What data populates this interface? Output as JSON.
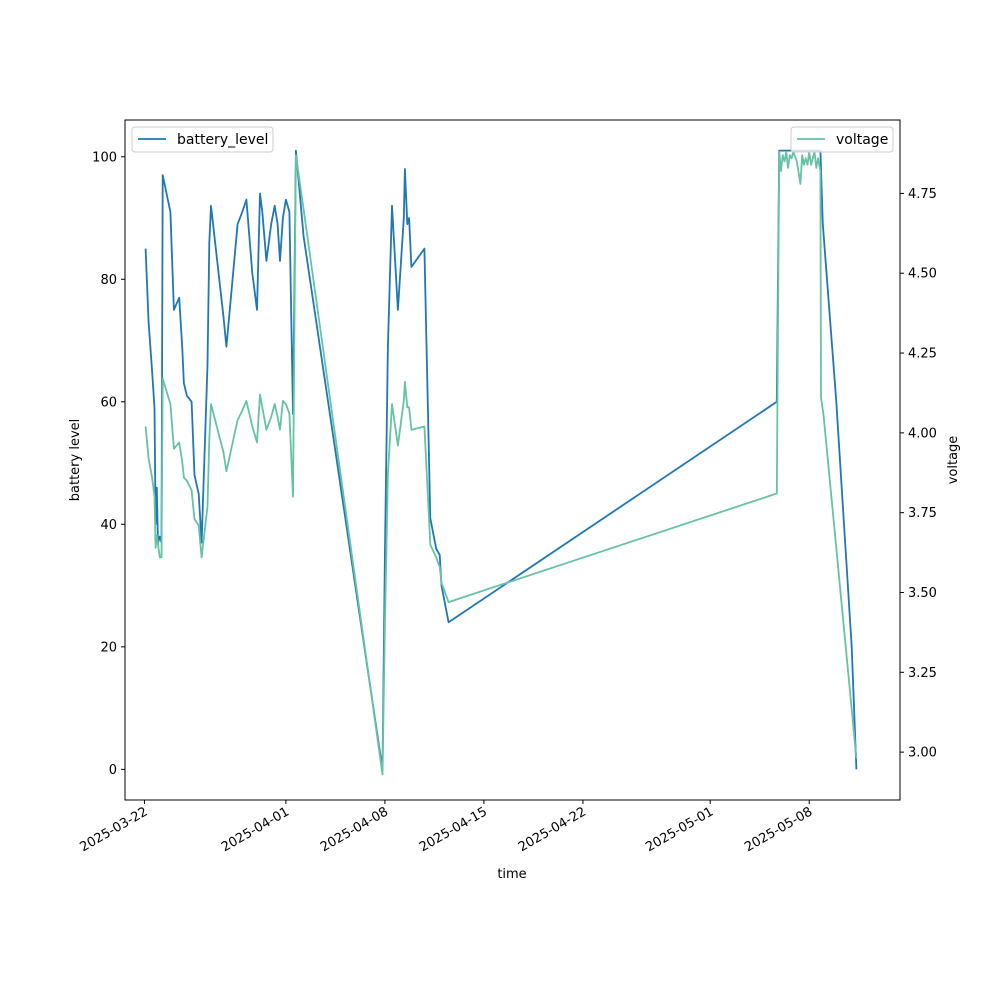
{
  "chart_data": {
    "type": "line",
    "xlabel": "time",
    "ylabel_left": "battery level",
    "ylabel_right": "voltage",
    "x_ticks": [
      "2025-03-22",
      "2025-04-01",
      "2025-04-08",
      "2025-04-15",
      "2025-04-22",
      "2025-05-01",
      "2025-05-08"
    ],
    "xlim": [
      "2025-03-20T15:00",
      "2025-05-14T10:00"
    ],
    "ylim_left": [
      -5,
      106
    ],
    "ylim_right": [
      2.85,
      4.98
    ],
    "y_ticks_left": [
      "0",
      "20",
      "40",
      "60",
      "80",
      "100"
    ],
    "y_ticks_right": [
      "3.00",
      "3.25",
      "3.50",
      "3.75",
      "4.00",
      "4.25",
      "4.50",
      "4.75"
    ],
    "legend_left": {
      "position": "upper-left"
    },
    "legend_right": {
      "position": "upper-right"
    },
    "series": [
      {
        "name": "battery_level",
        "axis": "left",
        "color": "#1f77b4",
        "points": [
          [
            "2025-03-22T02:00",
            85
          ],
          [
            "2025-03-22T07:00",
            73
          ],
          [
            "2025-03-22T13:00",
            65
          ],
          [
            "2025-03-22T17:00",
            59
          ],
          [
            "2025-03-22T19:00",
            40
          ],
          [
            "2025-03-22T21:00",
            46
          ],
          [
            "2025-03-22T23:00",
            37
          ],
          [
            "2025-03-23T02:00",
            38
          ],
          [
            "2025-03-23T05:00",
            37
          ],
          [
            "2025-03-23T07:00",
            97
          ],
          [
            "2025-03-23T20:00",
            91
          ],
          [
            "2025-03-24T02:00",
            75
          ],
          [
            "2025-03-24T11:00",
            77
          ],
          [
            "2025-03-24T16:00",
            69
          ],
          [
            "2025-03-24T19:00",
            63
          ],
          [
            "2025-03-25T00:00",
            61
          ],
          [
            "2025-03-25T08:00",
            60
          ],
          [
            "2025-03-25T13:00",
            48
          ],
          [
            "2025-03-25T20:00",
            45
          ],
          [
            "2025-03-26T01:00",
            37
          ],
          [
            "2025-03-26T11:00",
            66
          ],
          [
            "2025-03-26T14:00",
            86
          ],
          [
            "2025-03-26T17:00",
            92
          ],
          [
            "2025-03-27T14:00",
            74
          ],
          [
            "2025-03-27T19:00",
            69
          ],
          [
            "2025-03-28T14:00",
            89
          ],
          [
            "2025-03-28T22:00",
            91
          ],
          [
            "2025-03-29T05:00",
            93
          ],
          [
            "2025-03-29T15:00",
            81
          ],
          [
            "2025-03-29T23:00",
            75
          ],
          [
            "2025-03-30T04:00",
            94
          ],
          [
            "2025-03-30T08:00",
            91
          ],
          [
            "2025-03-30T15:00",
            83
          ],
          [
            "2025-03-30T23:00",
            89
          ],
          [
            "2025-03-31T05:00",
            92
          ],
          [
            "2025-03-31T10:00",
            89
          ],
          [
            "2025-03-31T14:00",
            83
          ],
          [
            "2025-03-31T19:00",
            90
          ],
          [
            "2025-04-01T00:00",
            93
          ],
          [
            "2025-04-01T06:00",
            91
          ],
          [
            "2025-04-01T12:00",
            58
          ],
          [
            "2025-04-01T17:00",
            101
          ],
          [
            "2025-04-02T06:00",
            87
          ],
          [
            "2025-04-07T20:00",
            0
          ],
          [
            "2025-04-08T00:00",
            35
          ],
          [
            "2025-04-08T05:00",
            69
          ],
          [
            "2025-04-08T12:00",
            92
          ],
          [
            "2025-04-08T22:00",
            75
          ],
          [
            "2025-04-09T08:00",
            90
          ],
          [
            "2025-04-09T10:00",
            98
          ],
          [
            "2025-04-09T14:00",
            89
          ],
          [
            "2025-04-09T17:00",
            90
          ],
          [
            "2025-04-09T21:00",
            82
          ],
          [
            "2025-04-10T19:00",
            85
          ],
          [
            "2025-04-11T05:00",
            41
          ],
          [
            "2025-04-11T15:00",
            36
          ],
          [
            "2025-04-11T21:00",
            35
          ],
          [
            "2025-04-12T00:00",
            30
          ],
          [
            "2025-04-12T12:00",
            24
          ],
          [
            "2025-05-05T17:00",
            60
          ],
          [
            "2025-05-05T21:00",
            101
          ],
          [
            "2025-05-06T07:00",
            101
          ],
          [
            "2025-05-06T17:00",
            101
          ],
          [
            "2025-05-07T09:00",
            101
          ],
          [
            "2025-05-07T15:00",
            101
          ],
          [
            "2025-05-07T23:00",
            101
          ],
          [
            "2025-05-08T07:00",
            101
          ],
          [
            "2025-05-08T13:00",
            101
          ],
          [
            "2025-05-08T19:00",
            101
          ],
          [
            "2025-05-08T23:00",
            89
          ],
          [
            "2025-05-09T22:00",
            60
          ],
          [
            "2025-05-11T00:00",
            20
          ],
          [
            "2025-05-11T08:00",
            0
          ]
        ]
      },
      {
        "name": "voltage",
        "axis": "right",
        "color": "#66c2a5",
        "points": [
          [
            "2025-03-22T02:00",
            4.02
          ],
          [
            "2025-03-22T07:00",
            3.92
          ],
          [
            "2025-03-22T13:00",
            3.86
          ],
          [
            "2025-03-22T17:00",
            3.8
          ],
          [
            "2025-03-22T19:00",
            3.64
          ],
          [
            "2025-03-22T21:00",
            3.68
          ],
          [
            "2025-03-22T23:00",
            3.65
          ],
          [
            "2025-03-23T02:00",
            3.61
          ],
          [
            "2025-03-23T05:00",
            3.61
          ],
          [
            "2025-03-23T07:00",
            4.17
          ],
          [
            "2025-03-23T20:00",
            4.09
          ],
          [
            "2025-03-24T02:00",
            3.95
          ],
          [
            "2025-03-24T11:00",
            3.97
          ],
          [
            "2025-03-24T16:00",
            3.91
          ],
          [
            "2025-03-24T19:00",
            3.86
          ],
          [
            "2025-03-25T00:00",
            3.85
          ],
          [
            "2025-03-25T08:00",
            3.82
          ],
          [
            "2025-03-25T13:00",
            3.73
          ],
          [
            "2025-03-25T20:00",
            3.71
          ],
          [
            "2025-03-26T01:00",
            3.61
          ],
          [
            "2025-03-26T11:00",
            3.77
          ],
          [
            "2025-03-26T14:00",
            3.98
          ],
          [
            "2025-03-26T17:00",
            4.09
          ],
          [
            "2025-03-27T14:00",
            3.94
          ],
          [
            "2025-03-27T19:00",
            3.88
          ],
          [
            "2025-03-28T14:00",
            4.04
          ],
          [
            "2025-03-28T22:00",
            4.07
          ],
          [
            "2025-03-29T05:00",
            4.1
          ],
          [
            "2025-03-29T15:00",
            4.02
          ],
          [
            "2025-03-29T23:00",
            3.97
          ],
          [
            "2025-03-30T04:00",
            4.12
          ],
          [
            "2025-03-30T08:00",
            4.08
          ],
          [
            "2025-03-30T15:00",
            4.01
          ],
          [
            "2025-03-30T23:00",
            4.05
          ],
          [
            "2025-03-31T05:00",
            4.09
          ],
          [
            "2025-03-31T10:00",
            4.05
          ],
          [
            "2025-03-31T14:00",
            4.01
          ],
          [
            "2025-03-31T19:00",
            4.1
          ],
          [
            "2025-04-01T00:00",
            4.09
          ],
          [
            "2025-04-01T06:00",
            4.06
          ],
          [
            "2025-04-01T12:00",
            3.8
          ],
          [
            "2025-04-01T17:00",
            4.87
          ],
          [
            "2025-04-02T06:00",
            4.7
          ],
          [
            "2025-04-07T20:00",
            2.93
          ],
          [
            "2025-04-08T00:00",
            3.4
          ],
          [
            "2025-04-08T05:00",
            3.87
          ],
          [
            "2025-04-08T12:00",
            4.09
          ],
          [
            "2025-04-08T22:00",
            3.96
          ],
          [
            "2025-04-09T08:00",
            4.1
          ],
          [
            "2025-04-09T10:00",
            4.16
          ],
          [
            "2025-04-09T14:00",
            4.08
          ],
          [
            "2025-04-09T17:00",
            4.08
          ],
          [
            "2025-04-09T21:00",
            4.01
          ],
          [
            "2025-04-10T19:00",
            4.02
          ],
          [
            "2025-04-11T05:00",
            3.65
          ],
          [
            "2025-04-11T15:00",
            3.61
          ],
          [
            "2025-04-11T21:00",
            3.58
          ],
          [
            "2025-04-12T00:00",
            3.53
          ],
          [
            "2025-04-12T12:00",
            3.47
          ],
          [
            "2025-05-05T17:00",
            3.81
          ],
          [
            "2025-05-05T21:00",
            4.88
          ],
          [
            "2025-05-06T00:00",
            4.82
          ],
          [
            "2025-05-06T03:00",
            4.87
          ],
          [
            "2025-05-06T06:00",
            4.85
          ],
          [
            "2025-05-06T09:00",
            4.88
          ],
          [
            "2025-05-06T12:00",
            4.83
          ],
          [
            "2025-05-06T15:00",
            4.87
          ],
          [
            "2025-05-06T18:00",
            4.86
          ],
          [
            "2025-05-06T21:00",
            4.88
          ],
          [
            "2025-05-07T03:00",
            4.85
          ],
          [
            "2025-05-07T09:00",
            4.78
          ],
          [
            "2025-05-07T12:00",
            4.87
          ],
          [
            "2025-05-07T15:00",
            4.84
          ],
          [
            "2025-05-07T18:00",
            4.86
          ],
          [
            "2025-05-07T21:00",
            4.84
          ],
          [
            "2025-05-08T00:00",
            4.88
          ],
          [
            "2025-05-08T03:00",
            4.84
          ],
          [
            "2025-05-08T06:00",
            4.86
          ],
          [
            "2025-05-08T09:00",
            4.88
          ],
          [
            "2025-05-08T12:00",
            4.83
          ],
          [
            "2025-05-08T15:00",
            4.86
          ],
          [
            "2025-05-08T19:00",
            4.82
          ],
          [
            "2025-05-08T20:00",
            4.11
          ],
          [
            "2025-05-09T00:00",
            4.06
          ],
          [
            "2025-05-10T00:00",
            3.6
          ],
          [
            "2025-05-11T08:00",
            2.98
          ]
        ]
      }
    ]
  }
}
